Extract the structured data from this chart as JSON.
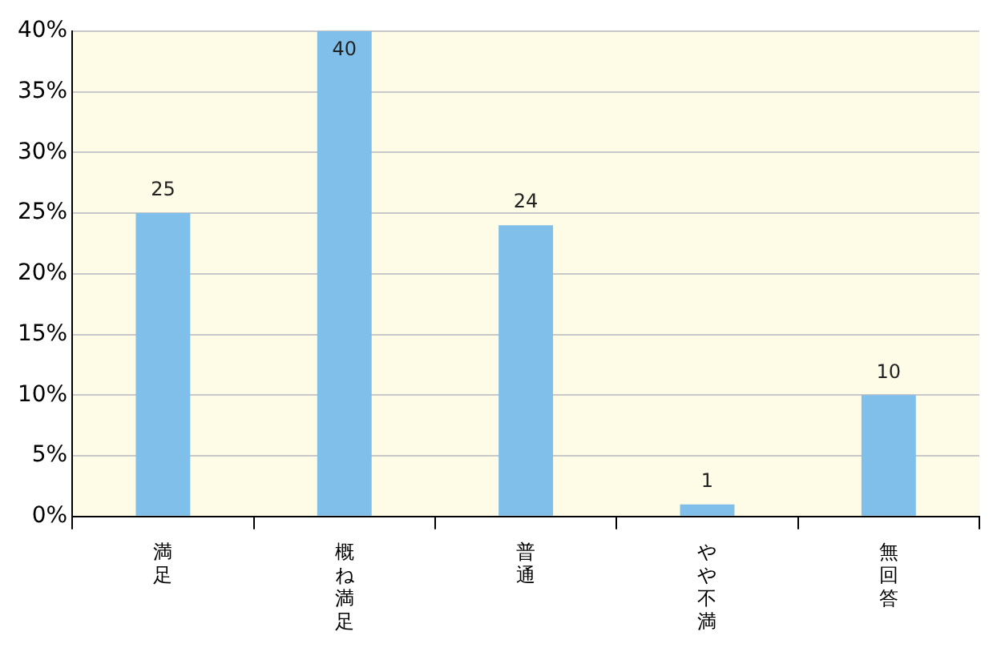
{
  "chart_data": {
    "type": "bar",
    "categories": [
      "満足",
      "概ね満足",
      "普通",
      "やや不満",
      "無回答"
    ],
    "values": [
      25,
      40,
      24,
      1,
      10
    ],
    "color": "#7fbfe9",
    "data_labels": true,
    "grid": "y",
    "legend": false,
    "ylim": [
      0,
      40
    ],
    "yticks": [
      {
        "value": 0,
        "label": "0%"
      },
      {
        "value": 5,
        "label": "5%"
      },
      {
        "value": 10,
        "label": "10%"
      },
      {
        "value": 15,
        "label": "15%"
      },
      {
        "value": 20,
        "label": "20%"
      },
      {
        "value": 25,
        "label": "25%"
      },
      {
        "value": 30,
        "label": "30%"
      },
      {
        "value": 35,
        "label": "35%"
      },
      {
        "value": 40,
        "label": "40%"
      }
    ]
  }
}
